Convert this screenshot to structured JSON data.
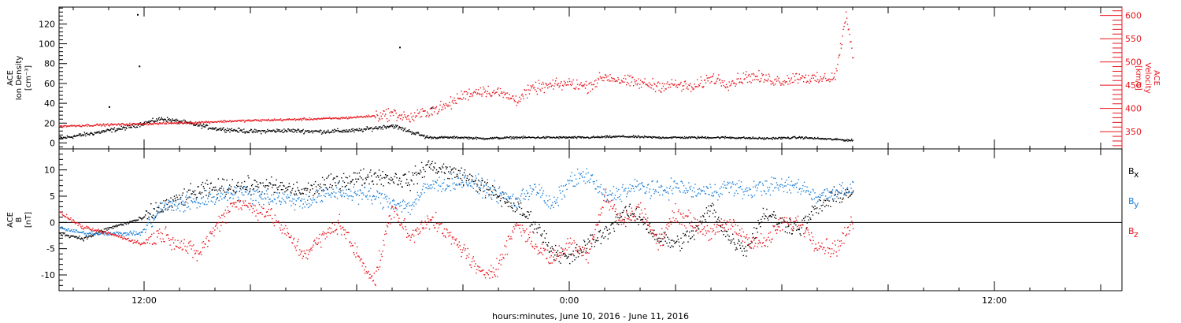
{
  "xlabel": "hours:minutes, June 10, 2016 - June 11, 2016",
  "x_tick_labels": [
    {
      "t": 12,
      "label": "12:00"
    },
    {
      "t": 24,
      "label": "0:00"
    },
    {
      "t": 36,
      "label": "12:00"
    }
  ],
  "colors": {
    "black": "#000000",
    "red": "#e8141c",
    "blue": "#1a7fd8"
  },
  "chart_data": [
    {
      "type": "scatter",
      "panel": "top",
      "x_units": "hours since 2016-06-10 00:00",
      "xlim": [
        9.6,
        39.6
      ],
      "left_axis": {
        "label_lines": [
          "ACE",
          "Ion Density",
          "[cm⁻³]"
        ],
        "ylim": [
          -6,
          137
        ],
        "ticks": [
          0,
          20,
          40,
          60,
          80,
          100,
          120
        ]
      },
      "right_axis": {
        "label_lines": [
          "ACE",
          "Velocity",
          "[km/s]"
        ],
        "ylim": [
          313,
          618
        ],
        "ticks": [
          350,
          400,
          450,
          500,
          550,
          600
        ]
      },
      "series": [
        {
          "name": "Ion Density",
          "axis": "left",
          "color": "#000000",
          "x": [
            9.6,
            10.5,
            11.5,
            12.5,
            13.0,
            14.0,
            15.0,
            16.0,
            17.0,
            18.0,
            19.0,
            20.0,
            21.0,
            21.5,
            22.5,
            23.5,
            24.5,
            25.5,
            26.5,
            27.5,
            28.5,
            29.5,
            30.5,
            31.5,
            32.0
          ],
          "y": [
            5,
            10,
            16,
            25,
            22,
            15,
            12,
            13,
            12,
            13,
            18,
            6,
            6,
            5,
            6,
            6,
            6,
            7,
            6,
            6,
            6,
            5,
            6,
            4,
            3
          ]
        },
        {
          "name": "Velocity",
          "axis": "right",
          "color": "#e8141c",
          "x": [
            9.6,
            10.5,
            11.5,
            12.5,
            13.5,
            14.5,
            15.5,
            16.5,
            17.5,
            18.5,
            19.0,
            19.5,
            20.0,
            20.5,
            21.0,
            21.5,
            22.0,
            22.5,
            23.0,
            23.5,
            24.0,
            24.5,
            25.0,
            25.5,
            26.0,
            26.5,
            27.0,
            27.5,
            28.0,
            28.5,
            29.0,
            29.5,
            30.0,
            30.5,
            31.0,
            31.5,
            31.8,
            32.0
          ],
          "y": [
            363,
            365,
            367,
            369,
            371,
            374,
            376,
            378,
            380,
            385,
            390,
            380,
            395,
            405,
            430,
            440,
            435,
            420,
            445,
            450,
            455,
            448,
            470,
            460,
            455,
            450,
            452,
            445,
            468,
            455,
            470,
            465,
            460,
            470,
            462,
            470,
            600,
            510
          ]
        }
      ]
    },
    {
      "type": "scatter",
      "panel": "bottom",
      "x_units": "hours since 2016-06-10 00:00",
      "xlim": [
        9.6,
        39.6
      ],
      "left_axis": {
        "label_lines": [
          "ACE",
          "B",
          "[nT]"
        ],
        "ylim": [
          -13,
          14
        ],
        "ticks": [
          -10,
          -5,
          0,
          5,
          10
        ]
      },
      "zero_line": true,
      "legend": [
        {
          "name": "Bx",
          "base": "B",
          "sub": "x",
          "color": "#000000"
        },
        {
          "name": "By",
          "base": "B",
          "sub": "y",
          "color": "#1a7fd8"
        },
        {
          "name": "Bz",
          "base": "B",
          "sub": "z",
          "color": "#e8141c"
        }
      ],
      "series": [
        {
          "name": "Bx",
          "color": "#000000",
          "x": [
            9.6,
            10.3,
            11.0,
            11.5,
            12.0,
            12.5,
            13.5,
            14.5,
            15.5,
            16.5,
            17.5,
            18.5,
            19.5,
            20.0,
            21.0,
            21.5,
            22.5,
            23.0,
            23.5,
            24.0,
            24.5,
            25.0,
            25.5,
            26.0,
            26.5,
            27.0,
            27.5,
            28.0,
            28.5,
            29.0,
            29.5,
            30.0,
            30.5,
            31.0,
            31.5,
            32.0
          ],
          "y": [
            -2,
            -3,
            -1,
            0,
            1,
            3,
            6,
            7,
            7,
            6,
            8,
            9,
            8,
            11,
            9,
            7,
            3,
            0,
            -5,
            -7,
            -4,
            -2,
            2,
            1,
            -3,
            -4,
            -2,
            3,
            -3,
            -5,
            2,
            0,
            -1,
            3,
            5,
            6
          ]
        },
        {
          "name": "By",
          "color": "#1a7fd8",
          "x": [
            9.6,
            10.3,
            11.0,
            11.5,
            11.9,
            12.5,
            13.5,
            14.5,
            15.5,
            16.5,
            17.5,
            18.5,
            19.5,
            20.0,
            21.0,
            21.5,
            22.5,
            23.0,
            23.5,
            24.0,
            24.5,
            25.0,
            25.5,
            26.0,
            26.5,
            27.0,
            27.5,
            28.0,
            28.5,
            29.0,
            29.5,
            30.0,
            30.5,
            31.0,
            31.5,
            32.0
          ],
          "y": [
            -1,
            -2,
            -2,
            -2,
            -2,
            3,
            4,
            6,
            5,
            4,
            6,
            5,
            3,
            7,
            8,
            7,
            4,
            7,
            3,
            8,
            9,
            5,
            6,
            7,
            6,
            7,
            6,
            6,
            7,
            6,
            7,
            7,
            7,
            5,
            6,
            7
          ]
        },
        {
          "name": "Bz",
          "color": "#e8141c",
          "x": [
            9.6,
            10.3,
            11.0,
            11.5,
            11.9,
            12.5,
            13.5,
            14.5,
            15.5,
            16.5,
            17.5,
            18.0,
            18.5,
            19.0,
            19.5,
            20.0,
            21.0,
            21.5,
            22.0,
            22.5,
            23.0,
            23.5,
            24.0,
            24.5,
            25.0,
            25.5,
            26.0,
            26.5,
            27.0,
            27.5,
            28.0,
            28.5,
            29.0,
            29.5,
            30.0,
            30.5,
            31.0,
            31.5,
            32.0
          ],
          "y": [
            2,
            -1,
            -2,
            -3,
            -4,
            -2,
            -6,
            4,
            2,
            -6,
            0,
            -6,
            -11,
            3,
            -3,
            1,
            -5,
            -10,
            -8,
            0,
            -4,
            -7,
            -4,
            -6,
            5,
            0,
            3,
            -4,
            2,
            0,
            -2,
            0,
            -3,
            -4,
            0,
            0,
            -4,
            -5,
            0
          ]
        }
      ]
    }
  ],
  "outliers": [
    {
      "panel": "top",
      "series": "Ion Density",
      "x": 11.8,
      "y": 130
    },
    {
      "panel": "top",
      "series": "Ion Density",
      "x": 11.85,
      "y": 78
    },
    {
      "panel": "top",
      "series": "Ion Density",
      "x": 11.0,
      "y": 37
    },
    {
      "panel": "top",
      "series": "Ion Density",
      "x": 19.2,
      "y": 97
    },
    {
      "panel": "top",
      "series": "Ion Density",
      "x": 20.1,
      "y": 36
    }
  ]
}
